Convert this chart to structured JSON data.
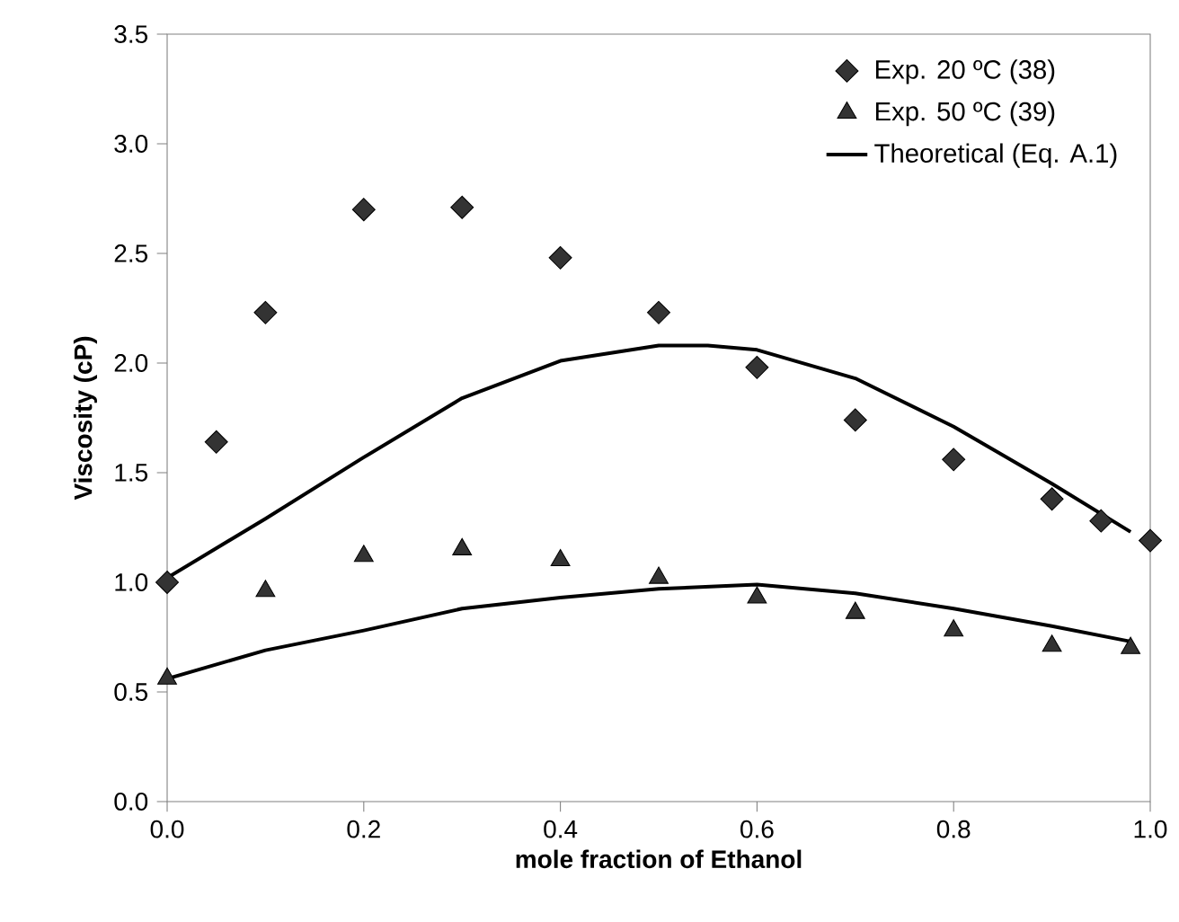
{
  "chart_data": {
    "type": "scatter",
    "xlabel": "mole fraction of Ethanol",
    "ylabel": "Viscosity (cP)",
    "xlim": [
      0,
      1
    ],
    "ylim": [
      0,
      3.5
    ],
    "xticks": [
      {
        "value": 0,
        "label": "0.0"
      },
      {
        "value": 0.2,
        "label": "0.2"
      },
      {
        "value": 0.4,
        "label": "0.4"
      },
      {
        "value": 0.6,
        "label": "0.6"
      },
      {
        "value": 0.8,
        "label": "0.8"
      },
      {
        "value": 1,
        "label": "1.0"
      }
    ],
    "yticks": [
      {
        "value": 0,
        "label": "0.0"
      },
      {
        "value": 0.5,
        "label": "0.5"
      },
      {
        "value": 1,
        "label": "1.0"
      },
      {
        "value": 1.5,
        "label": "1.5"
      },
      {
        "value": 2,
        "label": "2.0"
      },
      {
        "value": 2.5,
        "label": "2.5"
      },
      {
        "value": 3,
        "label": "3.0"
      },
      {
        "value": 3.5,
        "label": "3.5"
      }
    ],
    "grid": false,
    "legend": "top right",
    "series": [
      {
        "name": "Exp. 20 ºC (38)",
        "marker": "diamond",
        "color": "#333333",
        "x": [
          0,
          0.05,
          0.1,
          0.2,
          0.3,
          0.4,
          0.5,
          0.6,
          0.7,
          0.8,
          0.9,
          0.95,
          1.0
        ],
        "values": [
          1.0,
          1.64,
          2.23,
          2.7,
          2.71,
          2.48,
          2.23,
          1.98,
          1.74,
          1.56,
          1.38,
          1.28,
          1.19
        ]
      },
      {
        "name": "Exp. 50 ºC (39)",
        "marker": "triangle",
        "color": "#333333",
        "x": [
          0,
          0.1,
          0.2,
          0.3,
          0.4,
          0.5,
          0.6,
          0.7,
          0.8,
          0.9,
          0.98
        ],
        "values": [
          0.56,
          0.96,
          1.12,
          1.15,
          1.1,
          1.02,
          0.93,
          0.86,
          0.78,
          0.71,
          0.7
        ]
      },
      {
        "name": "Theoretical (Eq. A.1)",
        "type": "line",
        "marker": "none",
        "line_style": "solid",
        "color": "#000000",
        "x": [
          0,
          0.1,
          0.2,
          0.3,
          0.4,
          0.5,
          0.55,
          0.6,
          0.7,
          0.8,
          0.9,
          0.98
        ],
        "values": [
          1.02,
          1.29,
          1.57,
          1.84,
          2.01,
          2.08,
          2.08,
          2.06,
          1.93,
          1.71,
          1.45,
          1.23
        ]
      },
      {
        "type": "line",
        "marker": "none",
        "line_style": "solid",
        "color": "#000000",
        "x": [
          0,
          0.1,
          0.2,
          0.3,
          0.4,
          0.5,
          0.6,
          0.7,
          0.8,
          0.9,
          0.98
        ],
        "values": [
          0.56,
          0.69,
          0.78,
          0.88,
          0.93,
          0.97,
          0.99,
          0.95,
          0.88,
          0.8,
          0.73
        ]
      }
    ]
  }
}
